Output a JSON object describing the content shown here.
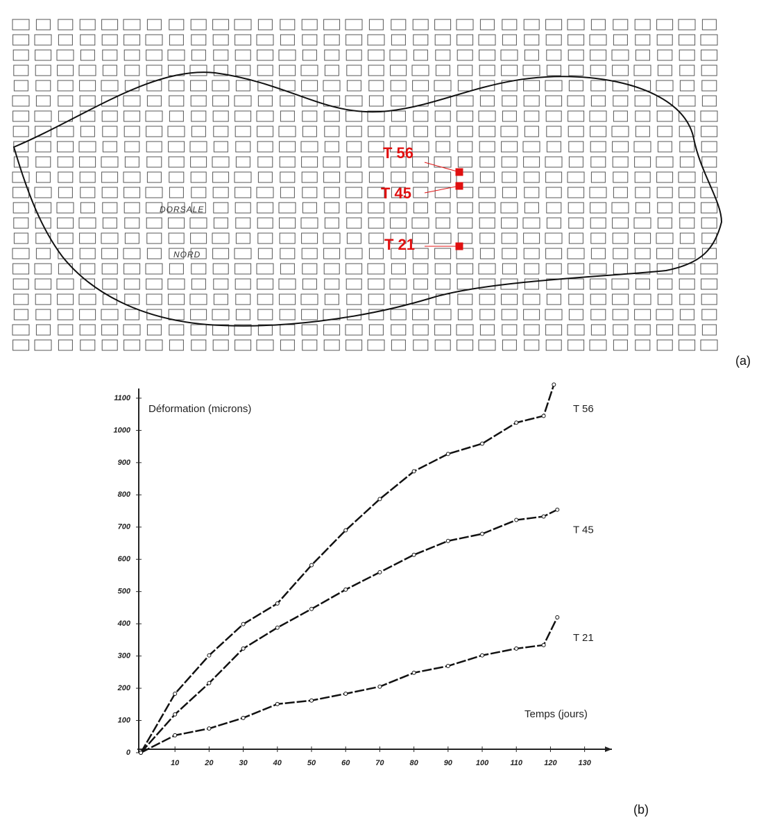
{
  "map": {
    "labels": [
      "T 56",
      "T 45",
      "T 21"
    ],
    "words": [
      "DORSALE",
      "NORD"
    ],
    "caption": "(a)"
  },
  "chart_data": {
    "type": "line",
    "caption": "(b)",
    "y_label": "Déformation (microns)",
    "x_label": "Temps (jours)",
    "xlim": [
      0,
      138
    ],
    "ylim": [
      0,
      1130
    ],
    "xticks": [
      10,
      20,
      30,
      40,
      50,
      60,
      70,
      80,
      90,
      100,
      110,
      120,
      130
    ],
    "yticks": [
      0,
      100,
      200,
      300,
      400,
      500,
      600,
      700,
      800,
      900,
      1000,
      1100
    ],
    "series": [
      {
        "name": "T 56",
        "color": "#111111",
        "x": [
          0,
          10,
          20,
          30,
          40,
          50,
          60,
          70,
          80,
          90,
          100,
          110,
          118,
          121
        ],
        "values": [
          0,
          183,
          302,
          399,
          463,
          582,
          690,
          787,
          873,
          927,
          959,
          1024,
          1045,
          1142
        ]
      },
      {
        "name": "T 45",
        "color": "#111111",
        "x": [
          0,
          10,
          20,
          30,
          40,
          50,
          60,
          70,
          80,
          90,
          100,
          110,
          118,
          122
        ],
        "values": [
          0,
          119,
          216,
          323,
          388,
          446,
          506,
          560,
          614,
          657,
          679,
          722,
          733,
          754
        ]
      },
      {
        "name": "T 21",
        "color": "#111111",
        "x": [
          0,
          10,
          20,
          30,
          40,
          50,
          60,
          70,
          80,
          90,
          100,
          110,
          118,
          122
        ],
        "values": [
          0,
          54,
          75,
          108,
          151,
          162,
          183,
          205,
          248,
          269,
          302,
          323,
          334,
          420
        ]
      }
    ]
  }
}
